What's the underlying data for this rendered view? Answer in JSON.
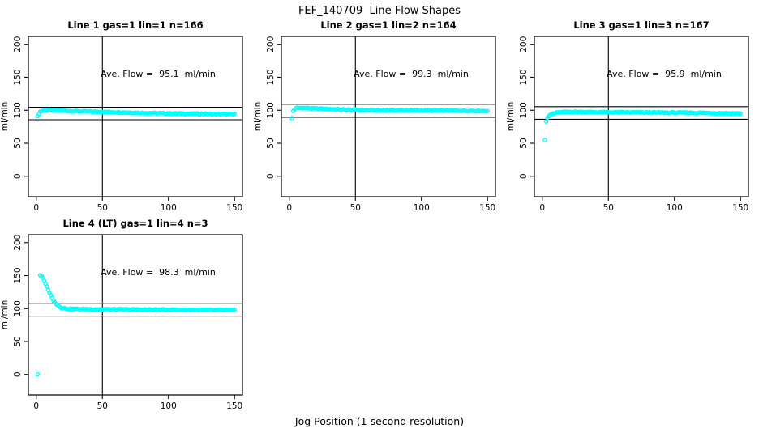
{
  "figure": {
    "title": "FEF_140709  Line Flow Shapes",
    "xlabel": "Jog Position (1 second resolution)",
    "background_color": "#ffffff",
    "axis_color": "#000000",
    "point_color": "#00ffff",
    "point_style": "open-circle"
  },
  "chart_data": {
    "type": "scatter",
    "title": "FEF_140709  Line Flow Shapes",
    "xlabel": "Jog Position (1 second resolution)",
    "ylabel": "ml/min",
    "grid": false,
    "legend": false,
    "xlim": [
      -6,
      156
    ],
    "ylim": [
      -31,
      212
    ],
    "x_ticks": [
      0,
      50,
      100,
      150
    ],
    "y_ticks": [
      0,
      50,
      100,
      150,
      200
    ],
    "vline_x": 50,
    "panels": [
      {
        "title": "Line 1 gas=1 lin=1 n=166",
        "annotation": "Ave. Flow =  95.1  ml/min",
        "ave_flow_ml_min": 95.1,
        "n": 166,
        "hlines": [
          104.6,
          85.6
        ],
        "outlier_points": [
          [
            1,
            91
          ]
        ],
        "curve_points": [
          [
            2,
            95
          ],
          [
            3,
            98
          ],
          [
            5,
            99.5
          ],
          [
            8,
            100.5
          ],
          [
            15,
            100
          ],
          [
            30,
            98.5
          ],
          [
            60,
            97
          ],
          [
            90,
            95.5
          ],
          [
            120,
            94.5
          ],
          [
            150,
            94
          ]
        ]
      },
      {
        "title": "Line 2 gas=1 lin=2 n=164",
        "annotation": "Ave. Flow =  99.3  ml/min",
        "ave_flow_ml_min": 99.3,
        "n": 164,
        "hlines": [
          109.2,
          89.4
        ],
        "outlier_points": [
          [
            2,
            88
          ]
        ],
        "curve_points": [
          [
            3,
            99
          ],
          [
            4,
            101.5
          ],
          [
            6,
            103.5
          ],
          [
            10,
            103.5
          ],
          [
            20,
            102.5
          ],
          [
            40,
            101
          ],
          [
            70,
            100
          ],
          [
            100,
            99.5
          ],
          [
            150,
            99
          ]
        ]
      },
      {
        "title": "Line 3 gas=1 lin=3 n=167",
        "annotation": "Ave. Flow =  95.9  ml/min",
        "ave_flow_ml_min": 95.9,
        "n": 167,
        "hlines": [
          105.5,
          86.3
        ],
        "outlier_points": [
          [
            2,
            55
          ],
          [
            3,
            83
          ]
        ],
        "curve_points": [
          [
            4,
            88
          ],
          [
            5,
            91
          ],
          [
            6,
            93
          ],
          [
            8,
            95
          ],
          [
            12,
            96.5
          ],
          [
            20,
            97.5
          ],
          [
            40,
            97
          ],
          [
            80,
            96.5
          ],
          [
            120,
            96
          ],
          [
            150,
            95
          ]
        ]
      },
      {
        "title": "Line 4 (LT) gas=1 lin=4 n=3",
        "annotation": "Ave. Flow =  98.3  ml/min",
        "ave_flow_ml_min": 98.3,
        "n": 3,
        "hlines": [
          108.1,
          88.5
        ],
        "outlier_points": [
          [
            1,
            0
          ]
        ],
        "curve_points": [
          [
            3,
            150
          ],
          [
            4,
            149
          ],
          [
            5,
            146
          ],
          [
            6,
            142
          ],
          [
            7,
            138
          ],
          [
            8,
            133
          ],
          [
            9,
            129
          ],
          [
            10,
            124
          ],
          [
            11,
            120
          ],
          [
            12,
            116
          ],
          [
            13,
            113
          ],
          [
            14,
            110
          ],
          [
            15,
            107.5
          ],
          [
            16,
            105.5
          ],
          [
            17,
            104
          ],
          [
            18,
            102.5
          ],
          [
            19,
            101.5
          ],
          [
            20,
            101
          ],
          [
            22,
            100
          ],
          [
            25,
            99.5
          ],
          [
            40,
            99
          ],
          [
            80,
            98.5
          ],
          [
            120,
            98
          ],
          [
            150,
            97.5
          ]
        ]
      }
    ]
  }
}
